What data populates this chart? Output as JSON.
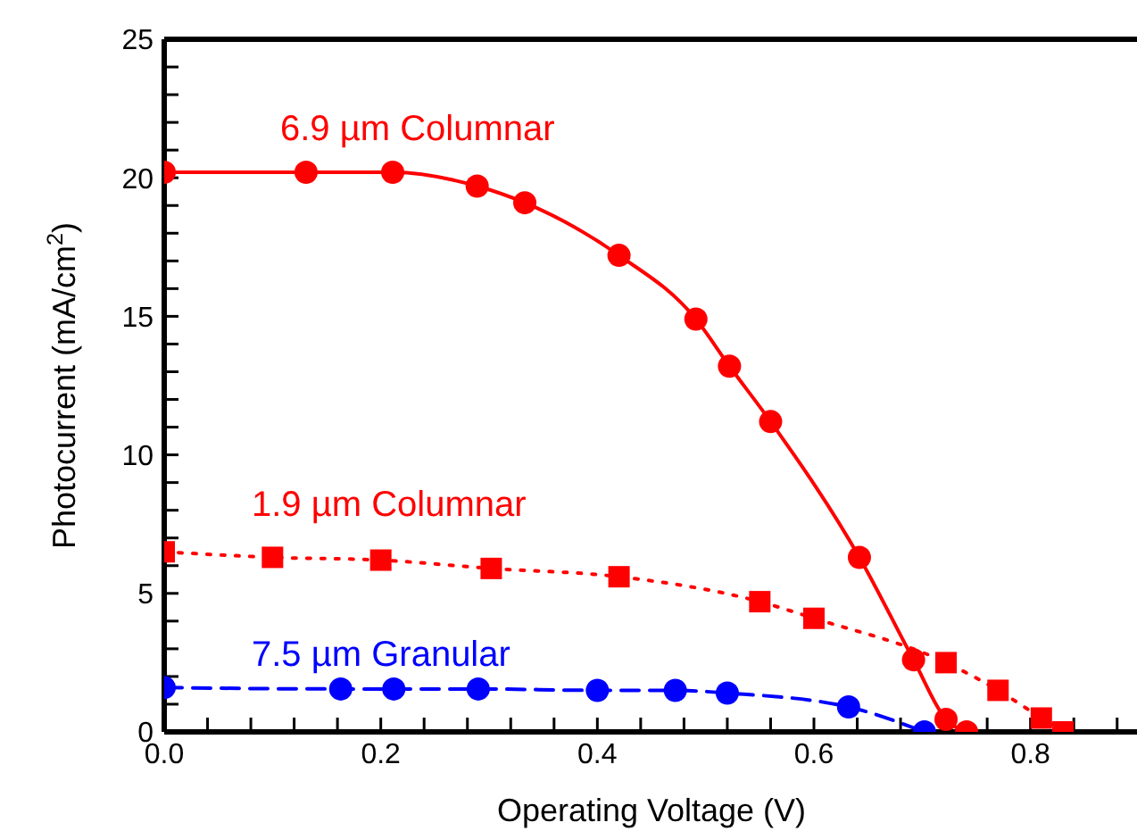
{
  "chart_data": {
    "type": "line",
    "xlabel": "Operating Voltage (V)",
    "ylabel": "Photocurrent (mA/cm$^{2}$)",
    "xlim": [
      0,
      0.9
    ],
    "xticks": [
      {
        "value": 0,
        "label": "0.0"
      },
      {
        "value": 0.04,
        "label": null
      },
      {
        "value": 0.08,
        "label": null
      },
      {
        "value": 0.12,
        "label": null
      },
      {
        "value": 0.16,
        "label": null
      },
      0.2,
      {
        "value": 0.24,
        "label": null
      },
      {
        "value": 0.28,
        "label": null
      },
      {
        "value": 0.32,
        "label": null
      },
      {
        "value": 0.36,
        "label": null
      },
      0.4,
      {
        "value": 0.44,
        "label": null
      },
      {
        "value": 0.48,
        "label": null
      },
      {
        "value": 0.52,
        "label": null
      },
      {
        "value": 0.56,
        "label": null
      },
      0.6,
      {
        "value": 0.64,
        "label": null
      },
      {
        "value": 0.68,
        "label": null
      },
      {
        "value": 0.72,
        "label": null
      },
      {
        "value": 0.76,
        "label": null
      },
      0.8,
      {
        "value": 0.84,
        "label": null
      },
      {
        "value": 0.88,
        "label": null
      }
    ],
    "ylim": [
      0,
      25
    ],
    "yticks": [
      0,
      {
        "value": 1,
        "label": null
      },
      {
        "value": 2,
        "label": null
      },
      {
        "value": 3,
        "label": null
      },
      {
        "value": 4,
        "label": null
      },
      5,
      {
        "value": 6,
        "label": null
      },
      {
        "value": 7,
        "label": null
      },
      {
        "value": 8,
        "label": null
      },
      {
        "value": 9,
        "label": null
      },
      10,
      {
        "value": 11,
        "label": null
      },
      {
        "value": 12,
        "label": null
      },
      {
        "value": 13,
        "label": null
      },
      {
        "value": 14,
        "label": null
      },
      15,
      {
        "value": 16,
        "label": null
      },
      {
        "value": 17,
        "label": null
      },
      {
        "value": 18,
        "label": null
      },
      {
        "value": 19,
        "label": null
      },
      20,
      {
        "value": 21,
        "label": null
      },
      {
        "value": 22,
        "label": null
      },
      {
        "value": 23,
        "label": null
      },
      {
        "value": 24,
        "label": null
      },
      25
    ],
    "series": [
      {
        "name": "6.9 µm Columnar",
        "color": "#ff0000",
        "marker": "circle",
        "line_style": "solid",
        "x": [
          0,
          0.131,
          0.211,
          0.289,
          0.333,
          0.42,
          0.491,
          0.522,
          0.56,
          0.642,
          0.692,
          0.722,
          0.741
        ],
        "values": [
          20.2,
          20.2,
          20.2,
          19.7,
          19.1,
          17.2,
          14.9,
          13.2,
          11.2,
          6.3,
          2.6,
          0.45,
          0
        ]
      },
      {
        "name": "1.9 µm Columnar",
        "color": "#ff0000",
        "marker": "square",
        "line_style": "dotted",
        "x": [
          0,
          0.1,
          0.2,
          0.302,
          0.42,
          0.55,
          0.6,
          0.722,
          0.77,
          0.81,
          0.83
        ],
        "values": [
          6.5,
          6.3,
          6.2,
          5.9,
          5.6,
          4.7,
          4.1,
          2.5,
          1.5,
          0.5,
          0
        ]
      },
      {
        "name": "7.5 µm Granular",
        "color": "#0000ff",
        "marker": "circle",
        "line_style": "dashed",
        "x": [
          0,
          0.163,
          0.212,
          0.29,
          0.4,
          0.472,
          0.52,
          0.632,
          0.702
        ],
        "values": [
          1.6,
          1.55,
          1.55,
          1.55,
          1.5,
          1.5,
          1.4,
          0.9,
          0
        ]
      }
    ]
  }
}
